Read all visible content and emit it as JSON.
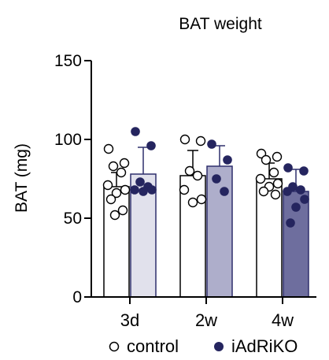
{
  "chart_data": {
    "type": "bar",
    "title": "BAT weight",
    "xlabel": "",
    "ylabel": "BAT (mg)",
    "ylim": [
      0,
      150
    ],
    "yticks": [
      0,
      50,
      100,
      150
    ],
    "categories": [
      "3d",
      "2w",
      "4w"
    ],
    "legend": {
      "placement": "bottom"
    },
    "series": [
      {
        "name": "control",
        "marker": "open-circle",
        "values": [
          70,
          77,
          75
        ],
        "error": [
          9,
          16,
          10
        ],
        "points": [
          [
            94,
            85,
            83,
            79,
            71,
            68,
            66,
            62,
            55,
            52
          ],
          [
            100,
            99,
            80,
            77,
            68,
            62,
            60
          ],
          [
            91,
            89,
            87,
            79,
            75,
            72,
            70,
            67,
            65
          ]
        ]
      },
      {
        "name": "iAdRiKO",
        "marker": "filled-circle",
        "values": [
          78,
          83,
          67
        ],
        "error": [
          17,
          13,
          14
        ],
        "points": [
          [
            105,
            96,
            73,
            70,
            68,
            68,
            67
          ],
          [
            97,
            87,
            75,
            67
          ],
          [
            82,
            80,
            70,
            68,
            67,
            62,
            57,
            47
          ]
        ]
      }
    ]
  },
  "colors": {
    "axis": "#000000",
    "control_fill": "#ffffff",
    "control_stroke": "#000000",
    "ko_fill": [
      "#e1e1ec",
      "#aeaecb",
      "#6e6e9e"
    ],
    "ko_stroke": "#2e2f6c",
    "ko_dot": "#25255f"
  }
}
